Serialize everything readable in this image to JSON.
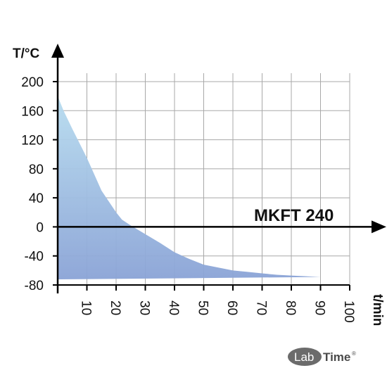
{
  "chart_data": {
    "type": "area",
    "y_title": "T/°C",
    "x_title": "t/min",
    "annotation": "MKFT 240",
    "x_ticks": [
      "10",
      "20",
      "30",
      "40",
      "50",
      "60",
      "70",
      "80",
      "90",
      "100"
    ],
    "y_ticks": [
      "200",
      "160",
      "120",
      "80",
      "40",
      "0",
      "-40",
      "-80"
    ],
    "xlim": [
      0,
      100
    ],
    "ylim": [
      -80,
      200
    ],
    "grid": true,
    "fill_color_top": "#b7dcef",
    "fill_color_bottom": "#8aa3d6",
    "series": [
      {
        "x": [
          0,
          2,
          5,
          10,
          15,
          20,
          22,
          25,
          30,
          35,
          40,
          45,
          50,
          55,
          60,
          65,
          70,
          75,
          80,
          85,
          90
        ],
        "y": [
          180,
          160,
          135,
          95,
          50,
          20,
          10,
          2,
          -10,
          -22,
          -35,
          -44,
          -52,
          -56,
          -60,
          -62,
          -64,
          -66,
          -67,
          -68,
          -69
        ]
      }
    ]
  },
  "logo": {
    "lab": "Lab",
    "time": "Time",
    "reg": "®"
  }
}
